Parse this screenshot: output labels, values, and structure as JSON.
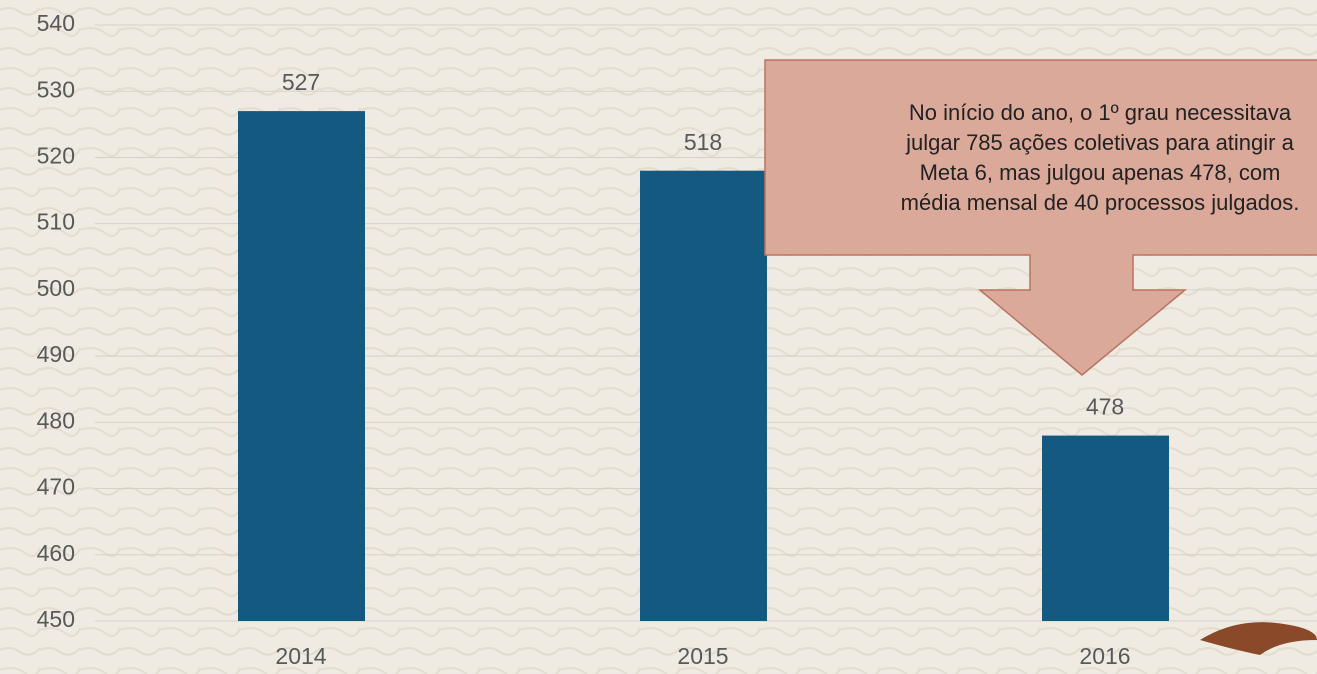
{
  "chart_data": {
    "type": "bar",
    "categories": [
      "2014",
      "2015",
      "2016"
    ],
    "values": [
      527,
      518,
      478
    ],
    "color": "#145a80",
    "ylim": [
      450,
      540
    ],
    "yticks": [
      450,
      460,
      470,
      480,
      490,
      500,
      510,
      520,
      530,
      540
    ],
    "grid": true,
    "annotation": [
      "No início do ano, o 1º grau necessitava",
      "julgar 785 ações coletivas para atingir a",
      "Meta 6, mas julgou apenas 478, com",
      "média mensal de 40 processos julgados."
    ]
  }
}
